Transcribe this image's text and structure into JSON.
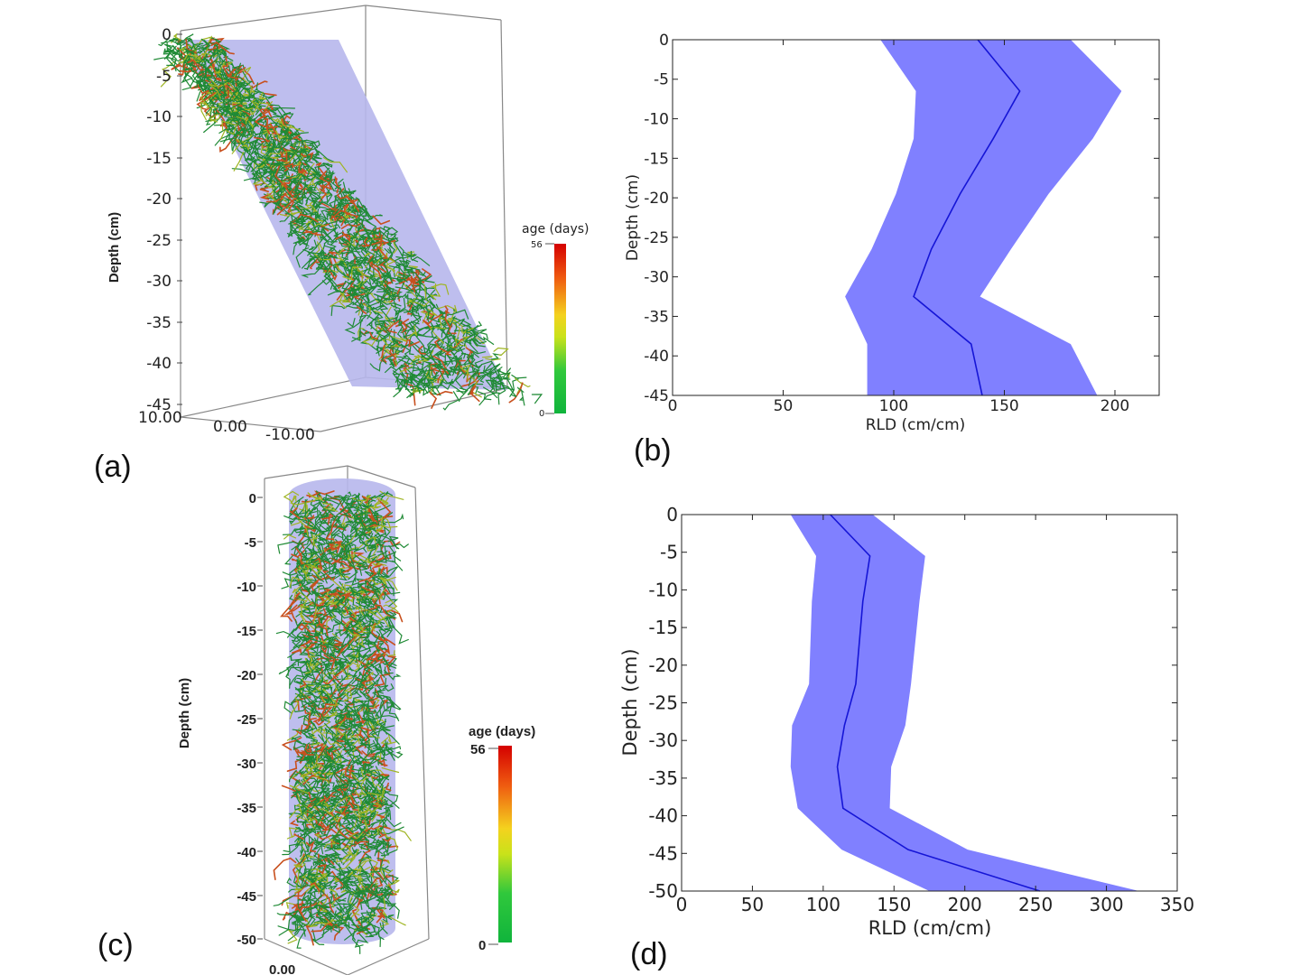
{
  "panels": [
    {
      "label": "(a)",
      "type": "3d-root-render",
      "zlabel": "Depth (cm)",
      "zticks": [
        "0",
        "-5",
        "-10",
        "-15",
        "-20",
        "-25",
        "-30",
        "-35",
        "-40",
        "-45"
      ],
      "xticks": [
        "10.00",
        "0.00",
        "-10.00"
      ],
      "colorbar": {
        "title": "age (days)",
        "max_label": "56",
        "min_label": "0"
      }
    },
    {
      "label": "(c)",
      "type": "3d-root-render",
      "zlabel": "Depth (cm)",
      "zticks": [
        "0",
        "-5",
        "-10",
        "-15",
        "-20",
        "-25",
        "-30",
        "-35",
        "-40",
        "-45",
        "-50"
      ],
      "xticks": [
        "0.00"
      ],
      "colorbar": {
        "title": "age (days)",
        "max_label": "56",
        "min_label": "0"
      }
    }
  ],
  "colors": {
    "band": "#8080ff",
    "line": "#1515d6",
    "cyl": "#b7b7ec",
    "root_green": "#1f8a35",
    "root_orange": "#c8501e"
  },
  "chart_data": [
    {
      "id": "b",
      "label": "(b)",
      "type": "line",
      "xlabel": "RLD (cm/cm)",
      "ylabel": "Depth (cm)",
      "xlim": [
        0,
        220
      ],
      "ylim": [
        -45,
        0
      ],
      "xticks": [
        0,
        50,
        100,
        150,
        200
      ],
      "yticks": [
        0,
        -5,
        -10,
        -15,
        -20,
        -25,
        -30,
        -35,
        -40,
        -45
      ],
      "depth": [
        0,
        -6.5,
        -12.5,
        -19.5,
        -26.5,
        -32.5,
        -38.5,
        -45
      ],
      "mean": [
        138,
        157,
        145,
        130,
        117,
        109,
        135,
        140
      ],
      "lower": [
        94,
        110,
        109,
        101,
        90,
        78,
        88,
        88
      ],
      "upper": [
        180,
        203,
        190,
        170,
        153,
        139,
        180,
        192
      ]
    },
    {
      "id": "d",
      "label": "(d)",
      "type": "line",
      "xlabel": "RLD (cm/cm)",
      "ylabel": "Depth (cm)",
      "xlim": [
        0,
        350
      ],
      "ylim": [
        -50,
        0
      ],
      "xticks": [
        0,
        50,
        100,
        150,
        200,
        250,
        300,
        350
      ],
      "yticks": [
        0,
        -5,
        -10,
        -15,
        -20,
        -25,
        -30,
        -35,
        -40,
        -45,
        -50
      ],
      "depth": [
        0,
        -5.5,
        -11.5,
        -22.5,
        -28,
        -33.5,
        -39,
        -44.5,
        -50
      ],
      "mean": [
        105,
        133,
        128,
        123,
        115,
        110,
        114,
        160,
        253
      ],
      "lower": [
        77,
        95,
        92,
        90,
        78,
        77,
        82,
        113,
        175
      ],
      "upper": [
        135,
        172,
        168,
        162,
        158,
        148,
        147,
        202,
        323
      ]
    }
  ]
}
